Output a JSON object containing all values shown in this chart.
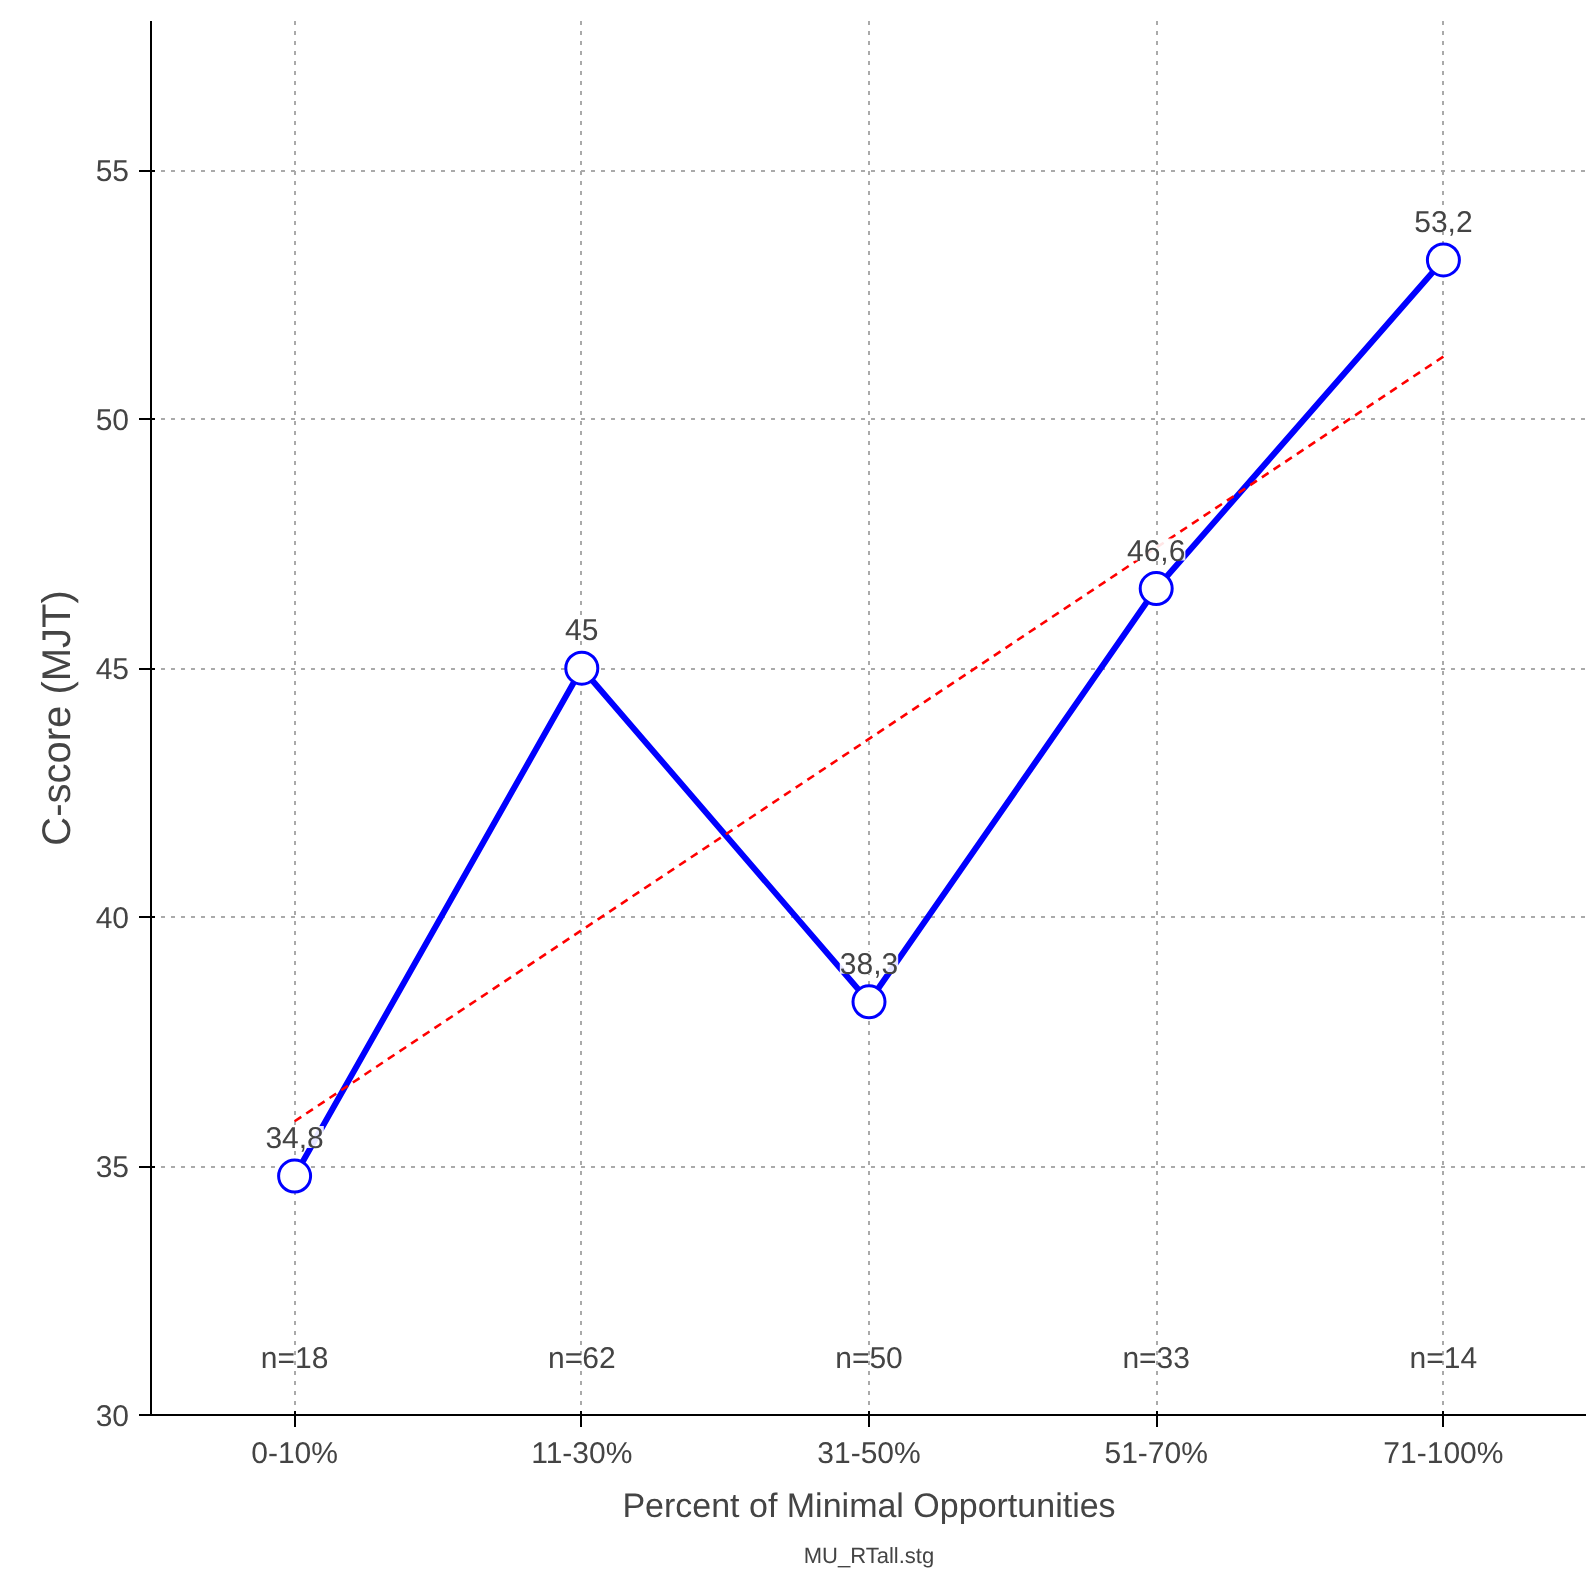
{
  "chart_data": {
    "type": "line",
    "xlabel": "Percent of Minimal Opportunities",
    "ylabel": "C-score (MJT)",
    "categories": [
      "0-10%",
      "11-30%",
      "31-50%",
      "51-70%",
      "71-100%"
    ],
    "series": [
      {
        "color": "#0000ff",
        "values": [
          34.8,
          45,
          38.3,
          46.6,
          53.2
        ],
        "value_labels": [
          "34,8",
          "45",
          "38,3",
          "46,6",
          "53,2"
        ],
        "marker": "circle",
        "line_style": "solid"
      },
      {
        "type": "line",
        "color": "#ff0000",
        "values": [
          35.9,
          39.74,
          43.58,
          47.42,
          51.26
        ],
        "marker": "none",
        "line_style": "dashed"
      }
    ],
    "ylim": [
      30,
      58
    ],
    "yticks": [
      30,
      35,
      40,
      45,
      50,
      55
    ],
    "grid": true,
    "annotations": [
      "n=18",
      "n=62",
      "n=50",
      "n=33",
      "n=14",
      "MU_RTall.stg"
    ]
  }
}
